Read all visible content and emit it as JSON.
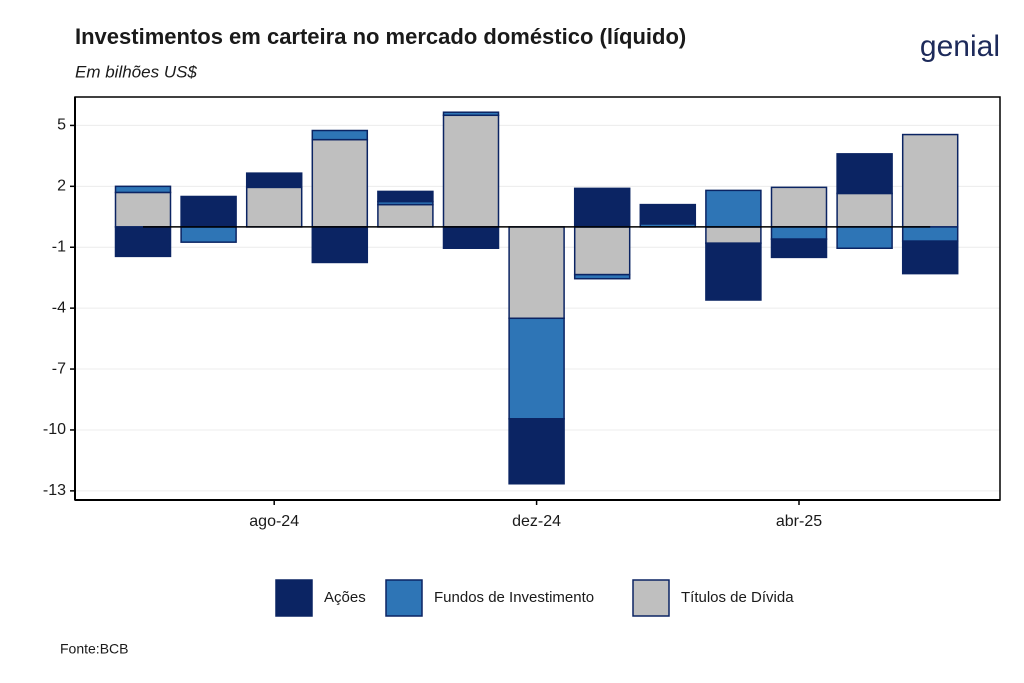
{
  "logo": "genial",
  "source": "Fonte:BCB",
  "chart_data": {
    "type": "bar",
    "stacked": true,
    "title": "Investimentos em carteira no mercado doméstico (líquido)",
    "subtitle": "Em bilhões US$",
    "categories": [
      null,
      null,
      "ago-24",
      null,
      null,
      null,
      "dez-24",
      null,
      null,
      null,
      "abr-25",
      null,
      null
    ],
    "series": [
      {
        "name": "Ações",
        "color": "#0b2463",
        "values": [
          -1.45,
          1.5,
          0.7,
          -1.75,
          0.5,
          -1.05,
          -3.2,
          1.9,
          0.95,
          -2.8,
          -0.9,
          1.95,
          -1.6
        ]
      },
      {
        "name": "Fundos de Investimento",
        "color": "#2e75b6",
        "values": [
          0.3,
          -0.75,
          0,
          0.45,
          0.15,
          0.15,
          -4.95,
          -0.2,
          0.15,
          1.8,
          -0.6,
          -1.05,
          -0.7
        ]
      },
      {
        "name": "Títulos de Dívida",
        "color": "#bfbfbf",
        "values": [
          1.7,
          0,
          1.95,
          4.3,
          1.1,
          5.5,
          -4.5,
          -2.35,
          0,
          -0.8,
          1.95,
          1.65,
          4.55
        ]
      }
    ],
    "ylim": [
      -13.45,
      6.4
    ],
    "yticks": [
      5,
      2,
      -1,
      -4,
      -7,
      -10,
      -13
    ],
    "grid": true,
    "legend": "bottom"
  }
}
